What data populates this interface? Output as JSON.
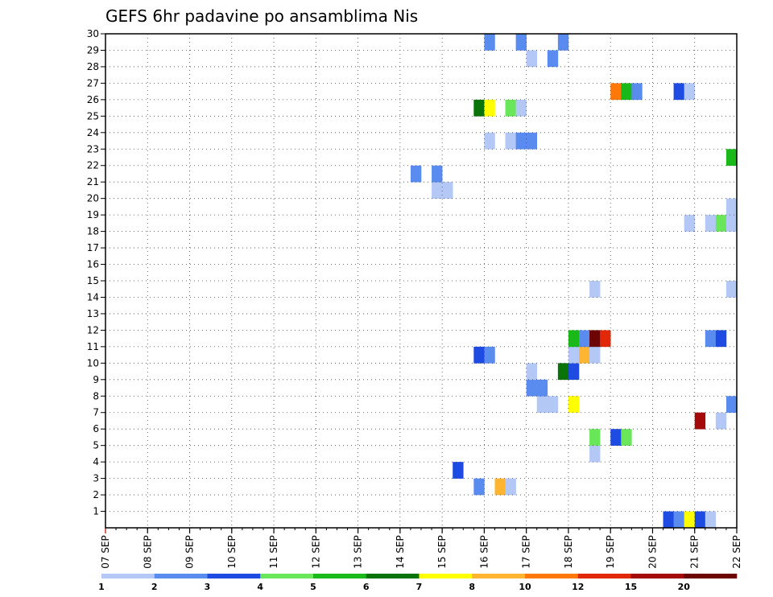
{
  "chart_data": {
    "type": "heatmap",
    "title": "GEFS 6hr padavine po ansamblima Nis",
    "x_ticks": [
      "07 SEP",
      "08 SEP",
      "09 SEP",
      "10 SEP",
      "11 SEP",
      "12 SEP",
      "13 SEP",
      "14 SEP",
      "15 SEP",
      "16 SEP",
      "17 SEP",
      "18 SEP",
      "19 SEP",
      "20 SEP",
      "21 SEP",
      "22 SEP"
    ],
    "y_ticks": [
      1,
      2,
      3,
      4,
      5,
      6,
      7,
      8,
      9,
      10,
      11,
      12,
      13,
      14,
      15,
      16,
      17,
      18,
      19,
      20,
      21,
      22,
      23,
      24,
      25,
      26,
      27,
      28,
      29,
      30
    ],
    "xlim": [
      0,
      60
    ],
    "ylim": [
      0,
      30
    ],
    "time_step_hours": 6,
    "grid": "dotted",
    "colorbar": {
      "placement": "bottom",
      "colors": [
        "#b4c8f5",
        "#5a8cf0",
        "#1e4be1",
        "#69e65a",
        "#19b919",
        "#0a730a",
        "#ffff00",
        "#ffb432",
        "#ff780a",
        "#e1280a",
        "#a50a0a",
        "#6e0505"
      ],
      "labels": [
        "1",
        "2",
        "3",
        "4",
        "5",
        "6",
        "7",
        "8",
        "10",
        "12",
        "15",
        "20"
      ]
    },
    "cells": [
      {
        "t": 53,
        "m": 0,
        "c": 2
      },
      {
        "t": 54,
        "m": 0,
        "c": 1
      },
      {
        "t": 55,
        "m": 0,
        "c": 6
      },
      {
        "t": 56,
        "m": 0,
        "c": 2
      },
      {
        "t": 57,
        "m": 0,
        "c": 0
      },
      {
        "t": 35,
        "m": 2,
        "c": 1
      },
      {
        "t": 37,
        "m": 2,
        "c": 7
      },
      {
        "t": 38,
        "m": 2,
        "c": 0
      },
      {
        "t": 33,
        "m": 3,
        "c": 2
      },
      {
        "t": 46,
        "m": 4,
        "c": 0
      },
      {
        "t": 46,
        "m": 5,
        "c": 3
      },
      {
        "t": 48,
        "m": 5,
        "c": 2
      },
      {
        "t": 49,
        "m": 5,
        "c": 3
      },
      {
        "t": 56,
        "m": 6,
        "c": 10
      },
      {
        "t": 58,
        "m": 6,
        "c": 0
      },
      {
        "t": 41,
        "m": 7,
        "c": 0
      },
      {
        "t": 42,
        "m": 7,
        "c": 0
      },
      {
        "t": 44,
        "m": 7,
        "c": 6
      },
      {
        "t": 59,
        "m": 7,
        "c": 1
      },
      {
        "t": 40,
        "m": 8,
        "c": 1
      },
      {
        "t": 41,
        "m": 8,
        "c": 1
      },
      {
        "t": 40,
        "m": 9,
        "c": 0
      },
      {
        "t": 43,
        "m": 9,
        "c": 5
      },
      {
        "t": 44,
        "m": 9,
        "c": 2
      },
      {
        "t": 35,
        "m": 10,
        "c": 2
      },
      {
        "t": 36,
        "m": 10,
        "c": 1
      },
      {
        "t": 44,
        "m": 10,
        "c": 0
      },
      {
        "t": 45,
        "m": 10,
        "c": 7
      },
      {
        "t": 46,
        "m": 10,
        "c": 0
      },
      {
        "t": 44,
        "m": 11,
        "c": 4
      },
      {
        "t": 45,
        "m": 11,
        "c": 1
      },
      {
        "t": 46,
        "m": 11,
        "c": 11
      },
      {
        "t": 47,
        "m": 11,
        "c": 9
      },
      {
        "t": 57,
        "m": 11,
        "c": 1
      },
      {
        "t": 58,
        "m": 11,
        "c": 2
      },
      {
        "t": 46,
        "m": 14,
        "c": 0
      },
      {
        "t": 59,
        "m": 14,
        "c": 0
      },
      {
        "t": 55,
        "m": 18,
        "c": 0
      },
      {
        "t": 57,
        "m": 18,
        "c": 0
      },
      {
        "t": 58,
        "m": 18,
        "c": 3
      },
      {
        "t": 59,
        "m": 18,
        "c": 0
      },
      {
        "t": 59,
        "m": 19,
        "c": 0
      },
      {
        "t": 31,
        "m": 20,
        "c": 0
      },
      {
        "t": 32,
        "m": 20,
        "c": 0
      },
      {
        "t": 29,
        "m": 21,
        "c": 1
      },
      {
        "t": 31,
        "m": 21,
        "c": 1
      },
      {
        "t": 59,
        "m": 22,
        "c": 4
      },
      {
        "t": 36,
        "m": 23,
        "c": 0
      },
      {
        "t": 38,
        "m": 23,
        "c": 0
      },
      {
        "t": 39,
        "m": 23,
        "c": 1
      },
      {
        "t": 40,
        "m": 23,
        "c": 1
      },
      {
        "t": 35,
        "m": 25,
        "c": 5
      },
      {
        "t": 36,
        "m": 25,
        "c": 6
      },
      {
        "t": 38,
        "m": 25,
        "c": 3
      },
      {
        "t": 39,
        "m": 25,
        "c": 0
      },
      {
        "t": 48,
        "m": 26,
        "c": 8
      },
      {
        "t": 49,
        "m": 26,
        "c": 4
      },
      {
        "t": 50,
        "m": 26,
        "c": 1
      },
      {
        "t": 54,
        "m": 26,
        "c": 2
      },
      {
        "t": 55,
        "m": 26,
        "c": 0
      },
      {
        "t": 40,
        "m": 28,
        "c": 0
      },
      {
        "t": 42,
        "m": 28,
        "c": 1
      },
      {
        "t": 36,
        "m": 29,
        "c": 1
      },
      {
        "t": 39,
        "m": 29,
        "c": 1
      },
      {
        "t": 43,
        "m": 29,
        "c": 1
      }
    ]
  }
}
